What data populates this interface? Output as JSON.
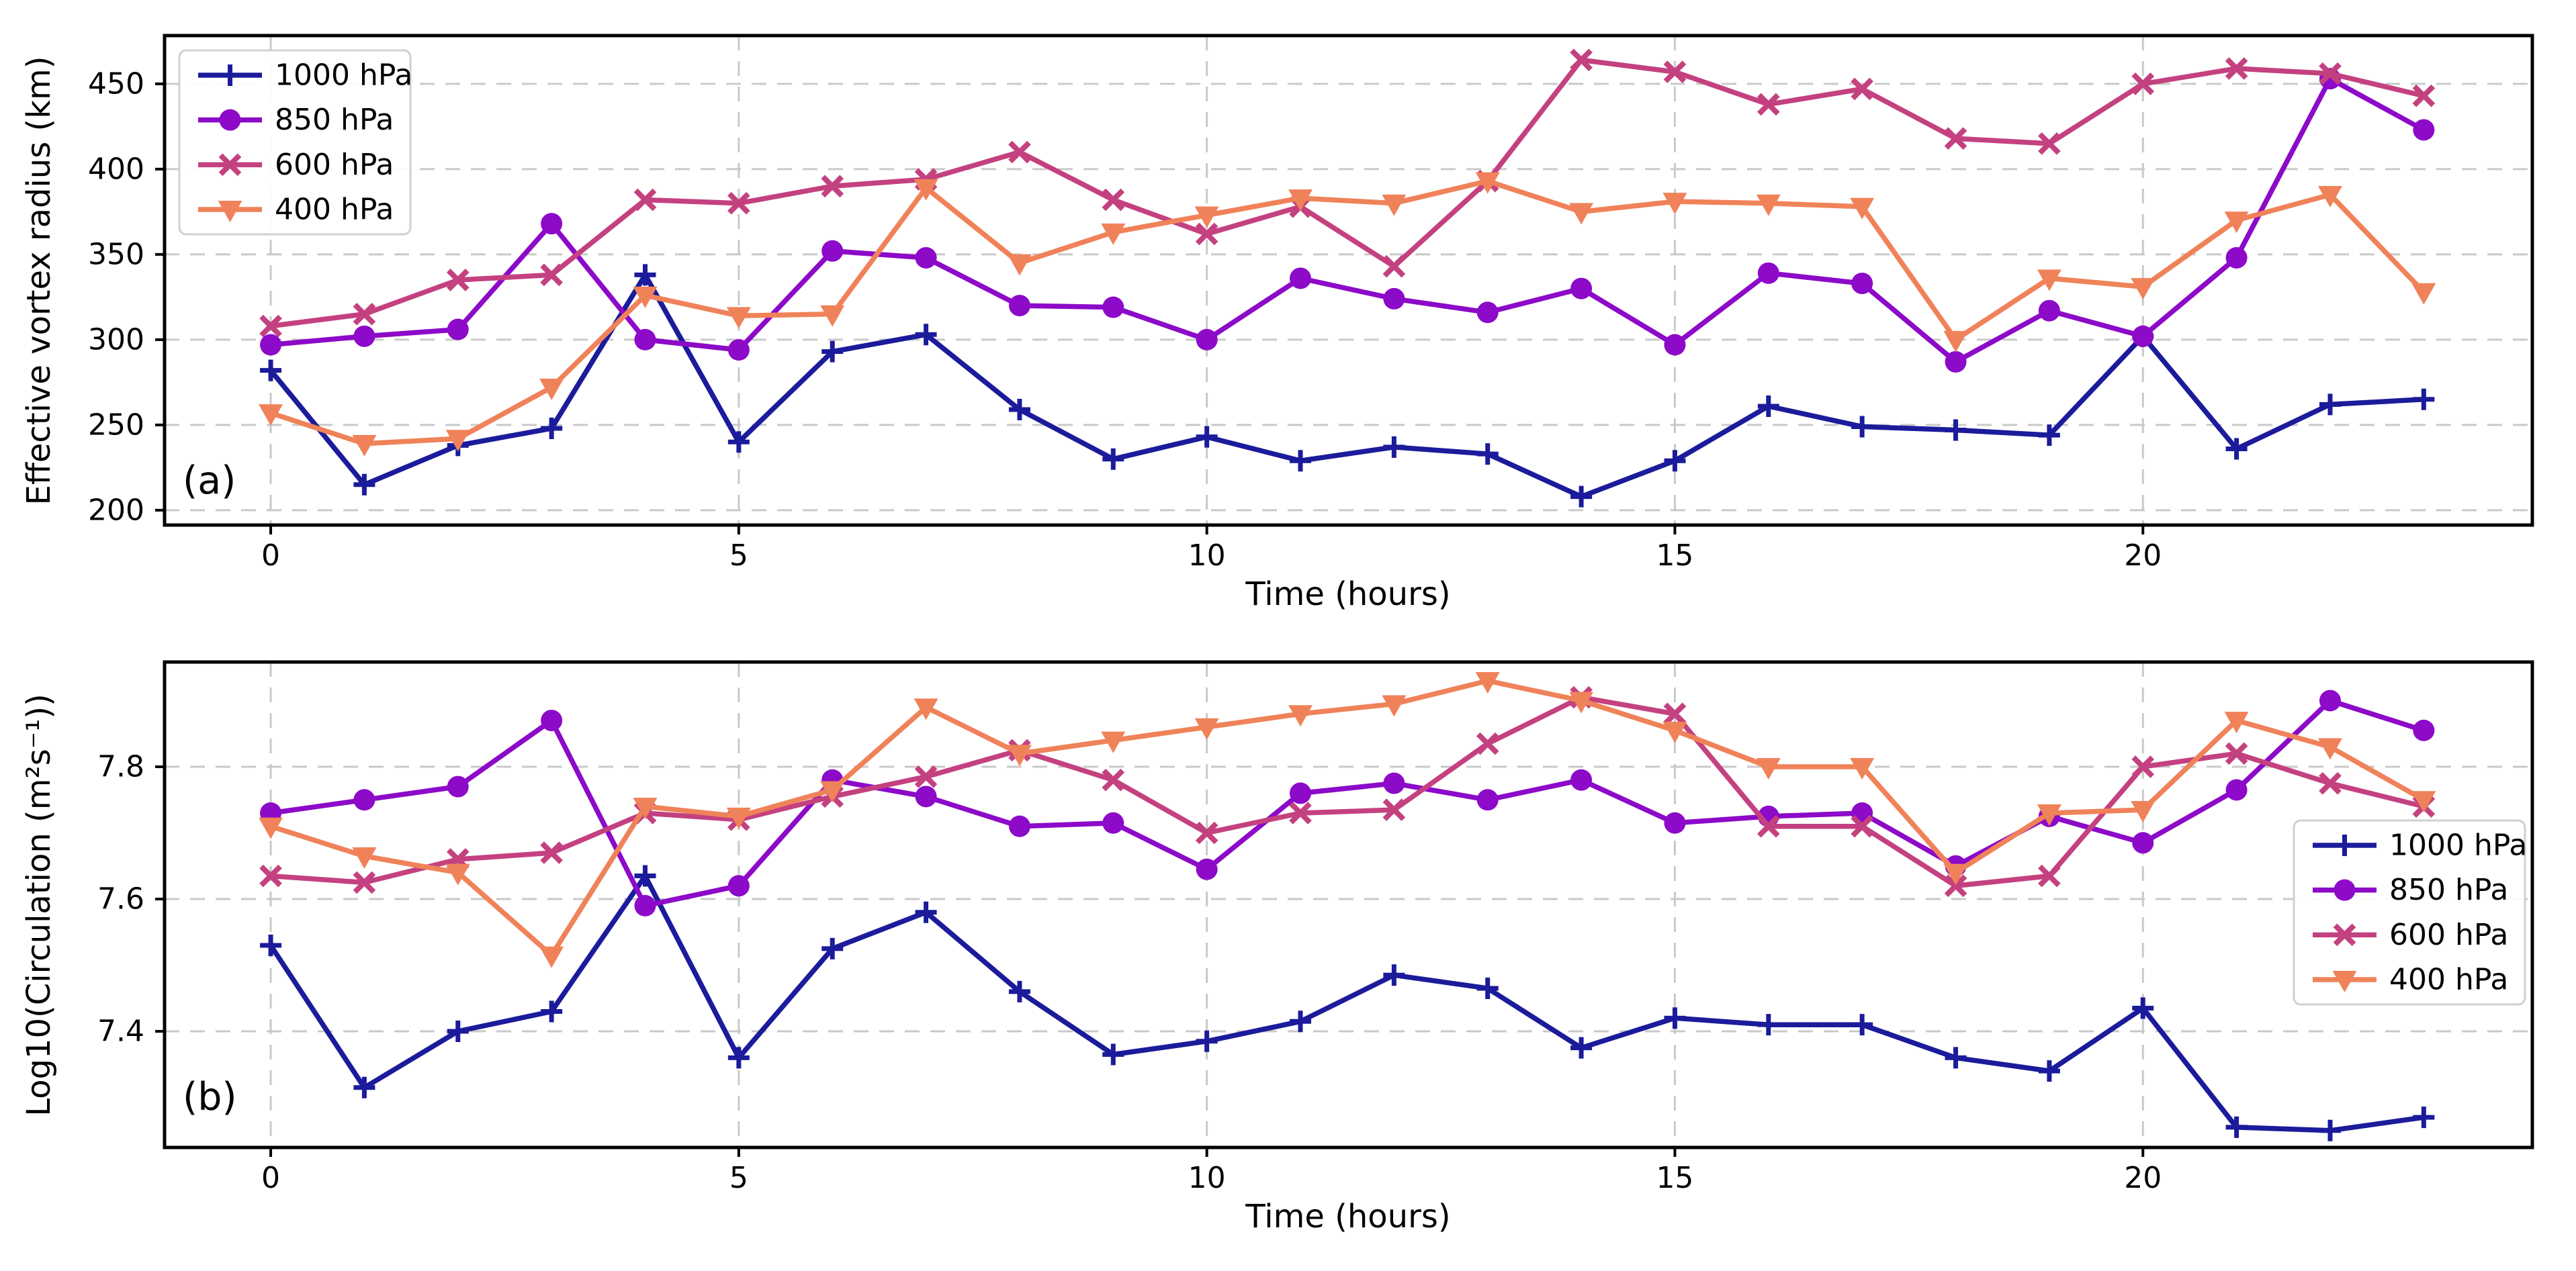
{
  "chart_data": [
    {
      "type": "line",
      "panel_label": "(a)",
      "xlabel": "Time (hours)",
      "ylabel": "Effective vortex radius (km)",
      "x": [
        0,
        1,
        2,
        3,
        4,
        5,
        6,
        7,
        8,
        9,
        10,
        11,
        12,
        13,
        14,
        15,
        16,
        17,
        18,
        19,
        20,
        21,
        22,
        23
      ],
      "xlim": [
        -1.134,
        24.16
      ],
      "ylim": [
        191.3,
        478.3
      ],
      "xticks": [
        0,
        5,
        10,
        15,
        20
      ],
      "xticklabels": [
        "0",
        "5",
        "10",
        "15",
        "20"
      ],
      "yticks": [
        200,
        250,
        300,
        350,
        400,
        450
      ],
      "yticklabels": [
        "200",
        "250",
        "300",
        "350",
        "400",
        "450"
      ],
      "grid": true,
      "legend_position": "upper-left",
      "series": [
        {
          "name": "1000 hPa",
          "color": "#1b1b9b",
          "marker": "plus",
          "values": [
            282,
            215,
            238,
            248,
            338,
            240,
            293,
            303,
            259,
            230,
            243,
            229,
            237,
            233,
            208,
            229,
            261,
            249,
            247,
            244,
            302,
            236,
            262,
            265
          ]
        },
        {
          "name": "850 hPa",
          "color": "#8c0ac8",
          "marker": "circle",
          "values": [
            297,
            302,
            306,
            368,
            300,
            294,
            352,
            348,
            320,
            319,
            300,
            336,
            324,
            316,
            330,
            297,
            339,
            333,
            287,
            317,
            302,
            348,
            453,
            423
          ]
        },
        {
          "name": "600 hPa",
          "color": "#c44180",
          "marker": "x",
          "values": [
            308,
            315,
            335,
            338,
            382,
            380,
            390,
            394,
            410,
            382,
            362,
            378,
            343,
            393,
            464,
            457,
            438,
            447,
            418,
            415,
            450,
            459,
            456,
            443
          ]
        },
        {
          "name": "400 hPa",
          "color": "#f0825a",
          "marker": "triangle-down",
          "values": [
            257,
            239,
            242,
            272,
            326,
            314,
            315,
            389,
            345,
            363,
            373,
            383,
            380,
            393,
            375,
            381,
            380,
            378,
            300,
            336,
            331,
            370,
            385,
            328
          ]
        }
      ]
    },
    {
      "type": "line",
      "panel_label": "(b)",
      "xlabel": "Time (hours)",
      "ylabel": "Log10(Circulation (m²s⁻¹))",
      "x": [
        0,
        1,
        2,
        3,
        4,
        5,
        6,
        7,
        8,
        9,
        10,
        11,
        12,
        13,
        14,
        15,
        16,
        17,
        18,
        19,
        20,
        21,
        22,
        23
      ],
      "xlim": [
        -1.134,
        24.16
      ],
      "ylim": [
        7.2244,
        7.9584
      ],
      "xticks": [
        0,
        5,
        10,
        15,
        20
      ],
      "xticklabels": [
        "0",
        "5",
        "10",
        "15",
        "20"
      ],
      "yticks": [
        7.4,
        7.6,
        7.8
      ],
      "yticklabels": [
        "7.4",
        "7.6",
        "7.8"
      ],
      "grid": true,
      "legend_position": "center-right",
      "series": [
        {
          "name": "1000 hPa",
          "color": "#1b1b9b",
          "marker": "plus",
          "values": [
            7.53,
            7.315,
            7.4,
            7.43,
            7.635,
            7.36,
            7.525,
            7.58,
            7.46,
            7.365,
            7.385,
            7.415,
            7.485,
            7.465,
            7.375,
            7.42,
            7.41,
            7.41,
            7.36,
            7.34,
            7.435,
            7.255,
            7.25,
            7.27
          ]
        },
        {
          "name": "850 hPa",
          "color": "#8c0ac8",
          "marker": "circle",
          "values": [
            7.73,
            7.75,
            7.77,
            7.87,
            7.59,
            7.62,
            7.78,
            7.755,
            7.71,
            7.715,
            7.645,
            7.76,
            7.775,
            7.75,
            7.78,
            7.715,
            7.725,
            7.73,
            7.65,
            7.725,
            7.685,
            7.765,
            7.9,
            7.855
          ]
        },
        {
          "name": "600 hPa",
          "color": "#c44180",
          "marker": "x",
          "values": [
            7.635,
            7.625,
            7.66,
            7.67,
            7.73,
            7.72,
            7.755,
            7.785,
            7.825,
            7.78,
            7.7,
            7.73,
            7.735,
            7.835,
            7.905,
            7.88,
            7.71,
            7.71,
            7.62,
            7.635,
            7.8,
            7.82,
            7.775,
            7.74
          ]
        },
        {
          "name": "400 hPa",
          "color": "#f0825a",
          "marker": "triangle-down",
          "values": [
            7.71,
            7.665,
            7.64,
            7.515,
            7.74,
            7.725,
            7.765,
            7.89,
            7.82,
            7.84,
            7.86,
            7.88,
            7.895,
            7.93,
            7.9,
            7.855,
            7.8,
            7.8,
            7.64,
            7.73,
            7.735,
            7.87,
            7.83,
            7.75
          ]
        }
      ]
    }
  ],
  "style": {
    "grid_color": "#c9c9c9",
    "spine_color": "#000000",
    "legend_border_color": "#d0d0d0",
    "legend_bg_color": "#ffffff",
    "text_color": "#000000"
  }
}
